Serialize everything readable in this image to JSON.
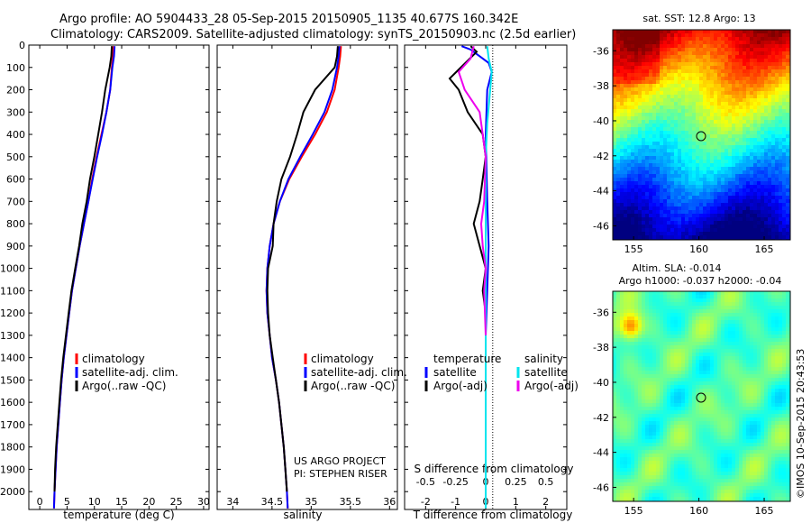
{
  "header": {
    "line1": "Argo profile: AO 5904433_28 05-Sep-2015 20150905_1135 40.677S 160.342E",
    "line2": "Climatology: CARS2009. Satellite-adjusted climatology: synTS_20150903.nc (2.5d earlier)"
  },
  "colors": {
    "climatology": "#ff0000",
    "satellite": "#0000ff",
    "argo": "#000000",
    "salinity_sat": "#00e5ee",
    "salinity_argo": "#ee00ee"
  },
  "chart_data": [
    {
      "id": "temperature",
      "type": "line",
      "xlabel": "temperature (deg C)",
      "xlim": [
        -2,
        31
      ],
      "xticks": [
        0,
        5,
        10,
        15,
        20,
        25,
        30
      ],
      "ylim": [
        2080,
        0
      ],
      "yticks": [
        0,
        100,
        200,
        300,
        400,
        500,
        600,
        700,
        800,
        900,
        1000,
        1100,
        1200,
        1300,
        1400,
        1500,
        1600,
        1700,
        1800,
        1900,
        2000
      ],
      "legend": [
        "climatology",
        "satellite-adj. clim.",
        "Argo(..raw -QC)"
      ],
      "series": [
        {
          "name": "climatology",
          "color": "#ff0000",
          "points": [
            [
              13.5,
              5
            ],
            [
              13.4,
              50
            ],
            [
              13.2,
              100
            ],
            [
              12.9,
              200
            ],
            [
              12.2,
              300
            ],
            [
              11.3,
              400
            ],
            [
              10.4,
              500
            ],
            [
              9.6,
              600
            ],
            [
              8.9,
              700
            ],
            [
              8.1,
              800
            ],
            [
              7.3,
              900
            ],
            [
              6.6,
              1000
            ],
            [
              5.9,
              1100
            ],
            [
              5.4,
              1200
            ],
            [
              4.9,
              1300
            ],
            [
              4.4,
              1400
            ],
            [
              4.0,
              1500
            ],
            [
              3.7,
              1600
            ],
            [
              3.4,
              1700
            ],
            [
              3.1,
              1800
            ],
            [
              2.9,
              1900
            ],
            [
              2.7,
              2000
            ],
            [
              2.6,
              2075
            ]
          ]
        },
        {
          "name": "satellite-adj. clim.",
          "color": "#0000ff",
          "points": [
            [
              13.7,
              5
            ],
            [
              13.6,
              50
            ],
            [
              13.3,
              100
            ],
            [
              12.9,
              200
            ],
            [
              12.2,
              300
            ],
            [
              11.4,
              400
            ],
            [
              10.5,
              500
            ],
            [
              9.7,
              600
            ],
            [
              8.9,
              700
            ],
            [
              8.1,
              800
            ],
            [
              7.3,
              900
            ],
            [
              6.6,
              1000
            ],
            [
              5.9,
              1100
            ],
            [
              5.4,
              1200
            ],
            [
              4.9,
              1300
            ],
            [
              4.4,
              1400
            ],
            [
              4.0,
              1500
            ],
            [
              3.7,
              1600
            ],
            [
              3.4,
              1700
            ],
            [
              3.1,
              1800
            ],
            [
              2.9,
              1900
            ],
            [
              2.7,
              2000
            ],
            [
              2.6,
              2075
            ]
          ]
        },
        {
          "name": "Argo(..raw -QC)",
          "color": "#000000",
          "points": [
            [
              13.2,
              5
            ],
            [
              13.1,
              50
            ],
            [
              12.8,
              100
            ],
            [
              12.0,
              200
            ],
            [
              11.4,
              300
            ],
            [
              10.7,
              400
            ],
            [
              10.0,
              500
            ],
            [
              9.2,
              600
            ],
            [
              8.6,
              700
            ],
            [
              7.8,
              800
            ],
            [
              7.2,
              900
            ],
            [
              6.5,
              1000
            ],
            [
              5.8,
              1100
            ],
            [
              5.3,
              1200
            ],
            [
              4.8,
              1300
            ],
            [
              4.3,
              1400
            ],
            [
              3.9,
              1500
            ],
            [
              3.6,
              1600
            ],
            [
              3.3,
              1700
            ],
            [
              3.0,
              1800
            ],
            [
              2.8,
              1900
            ],
            [
              2.7,
              2000
            ]
          ]
        }
      ]
    },
    {
      "id": "salinity",
      "type": "line",
      "xlabel": "salinity",
      "xlim": [
        33.8,
        36.1
      ],
      "xticks": [
        34,
        34.5,
        35,
        35.5,
        36
      ],
      "ylim": [
        2080,
        0
      ],
      "legend": [
        "climatology",
        "satellite-adj. clim.",
        "Argo(..raw -QC)"
      ],
      "annotation": [
        "US ARGO PROJECT",
        "PI: STEPHEN RISER"
      ],
      "series": [
        {
          "name": "climatology",
          "color": "#ff0000",
          "points": [
            [
              35.38,
              5
            ],
            [
              35.37,
              50
            ],
            [
              35.35,
              100
            ],
            [
              35.3,
              200
            ],
            [
              35.2,
              300
            ],
            [
              35.05,
              400
            ],
            [
              34.88,
              500
            ],
            [
              34.72,
              600
            ],
            [
              34.6,
              700
            ],
            [
              34.52,
              800
            ],
            [
              34.47,
              900
            ],
            [
              34.44,
              1000
            ],
            [
              34.43,
              1100
            ],
            [
              34.44,
              1200
            ],
            [
              34.47,
              1300
            ],
            [
              34.5,
              1400
            ],
            [
              34.55,
              1500
            ],
            [
              34.59,
              1600
            ],
            [
              34.62,
              1700
            ],
            [
              34.65,
              1800
            ],
            [
              34.67,
              1900
            ],
            [
              34.69,
              2000
            ],
            [
              34.7,
              2075
            ]
          ]
        },
        {
          "name": "satellite-adj. clim.",
          "color": "#0000ff",
          "points": [
            [
              35.36,
              5
            ],
            [
              35.35,
              50
            ],
            [
              35.33,
              100
            ],
            [
              35.27,
              200
            ],
            [
              35.17,
              300
            ],
            [
              35.02,
              400
            ],
            [
              34.86,
              500
            ],
            [
              34.71,
              600
            ],
            [
              34.6,
              700
            ],
            [
              34.52,
              800
            ],
            [
              34.47,
              900
            ],
            [
              34.44,
              1000
            ],
            [
              34.43,
              1100
            ],
            [
              34.44,
              1200
            ],
            [
              34.47,
              1300
            ],
            [
              34.5,
              1400
            ],
            [
              34.55,
              1500
            ],
            [
              34.59,
              1600
            ],
            [
              34.62,
              1700
            ],
            [
              34.65,
              1800
            ],
            [
              34.67,
              1900
            ],
            [
              34.69,
              2000
            ],
            [
              34.7,
              2075
            ]
          ]
        },
        {
          "name": "Argo(..raw -QC)",
          "color": "#000000",
          "points": [
            [
              35.34,
              5
            ],
            [
              35.33,
              50
            ],
            [
              35.3,
              100
            ],
            [
              35.05,
              200
            ],
            [
              34.9,
              300
            ],
            [
              34.82,
              400
            ],
            [
              34.73,
              500
            ],
            [
              34.62,
              600
            ],
            [
              34.56,
              700
            ],
            [
              34.52,
              800
            ],
            [
              34.51,
              900
            ],
            [
              34.45,
              1000
            ],
            [
              34.44,
              1100
            ],
            [
              34.45,
              1200
            ],
            [
              34.47,
              1300
            ],
            [
              34.51,
              1400
            ],
            [
              34.55,
              1500
            ],
            [
              34.59,
              1600
            ],
            [
              34.62,
              1700
            ],
            [
              34.65,
              1800
            ],
            [
              34.67,
              1900
            ],
            [
              34.69,
              2000
            ]
          ]
        }
      ]
    },
    {
      "id": "difference",
      "type": "line",
      "xlabel": "T difference from climatology",
      "xlabel_top": "S difference from climatology",
      "xlim": [
        -2.7,
        2.7
      ],
      "xticks": [
        -2,
        -1,
        0,
        1,
        2
      ],
      "xticks_top": [
        "-0.5",
        "-0.25",
        "0",
        "0.25",
        "0.5"
      ],
      "ylim": [
        2080,
        0
      ],
      "legend_temperature_title": "temperature",
      "legend_salinity_title": "salinity",
      "legend_temperature": [
        "satellite",
        "Argo(-adj)"
      ],
      "legend_salinity": [
        "satellite",
        "Argo(-adj)"
      ],
      "series": [
        {
          "name": "T satellite",
          "color": "#0000ff",
          "points": [
            [
              -0.8,
              5
            ],
            [
              -0.5,
              20
            ],
            [
              -0.3,
              40
            ],
            [
              0.1,
              80
            ],
            [
              0.2,
              120
            ],
            [
              0.05,
              200
            ],
            [
              0.0,
              400
            ],
            [
              0.05,
              700
            ],
            [
              0.1,
              900
            ],
            [
              0.05,
              1100
            ],
            [
              0.0,
              1300
            ]
          ]
        },
        {
          "name": "T Argo(-adj)",
          "color": "#000000",
          "points": [
            [
              -0.5,
              5
            ],
            [
              -0.3,
              30
            ],
            [
              -0.6,
              70
            ],
            [
              -1.2,
              150
            ],
            [
              -0.9,
              200
            ],
            [
              -0.6,
              300
            ],
            [
              -0.1,
              400
            ],
            [
              0.0,
              500
            ],
            [
              -0.1,
              600
            ],
            [
              -0.2,
              700
            ],
            [
              -0.4,
              800
            ],
            [
              -0.2,
              900
            ],
            [
              0.0,
              1000
            ],
            [
              -0.1,
              1100
            ],
            [
              0.0,
              1200
            ],
            [
              0.0,
              1500
            ],
            [
              0.0,
              2000
            ]
          ]
        },
        {
          "name": "S satellite",
          "color": "#00e5ee",
          "points": [
            [
              0.05,
              5
            ],
            [
              0.1,
              60
            ],
            [
              0.2,
              120
            ],
            [
              0.15,
              200
            ],
            [
              0.05,
              350
            ],
            [
              0.0,
              500
            ],
            [
              0.0,
              800
            ],
            [
              0.0,
              1200
            ],
            [
              0.0,
              1600
            ],
            [
              0.0,
              2075
            ]
          ]
        },
        {
          "name": "S Argo(-adj)",
          "color": "#ee00ee",
          "points": [
            [
              -0.4,
              5
            ],
            [
              -0.5,
              60
            ],
            [
              -0.9,
              120
            ],
            [
              -0.7,
              200
            ],
            [
              -0.2,
              300
            ],
            [
              -0.1,
              400
            ],
            [
              0.0,
              500
            ],
            [
              -0.05,
              700
            ],
            [
              -0.15,
              800
            ],
            [
              -0.1,
              900
            ],
            [
              0.0,
              1000
            ],
            [
              -0.05,
              1100
            ],
            [
              0.0,
              1300
            ]
          ]
        }
      ]
    }
  ],
  "maps": {
    "sst": {
      "title": "sat. SST: 12.8 Argo: 13",
      "xticks": [
        "155",
        "160",
        "165"
      ],
      "yticks": [
        "-36",
        "-38",
        "-40",
        "-42",
        "-44",
        "-46"
      ]
    },
    "sla": {
      "title_line1": "Altim. SLA: -0.014",
      "title_line2": "Argo h1000: -0.037 h2000: -0.04",
      "xticks": [
        "155",
        "160",
        "165"
      ],
      "yticks": [
        "-36",
        "-38",
        "-40",
        "-42",
        "-44",
        "-46"
      ]
    }
  },
  "footer": {
    "credit": "©IMOS 10-Sep-2015 20:43:53"
  }
}
